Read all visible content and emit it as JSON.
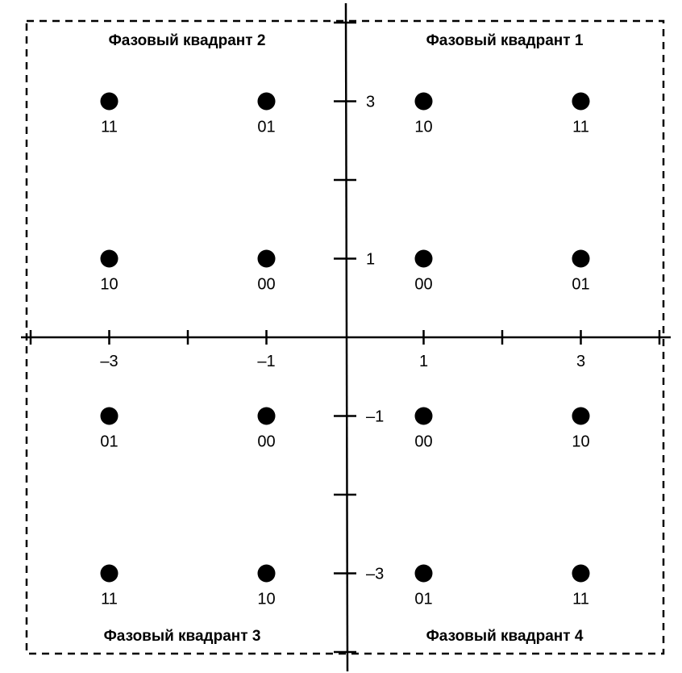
{
  "quadrants": [
    {
      "id": "q1",
      "title": "Фазовый квадрант 1"
    },
    {
      "id": "q2",
      "title": "Фазовый квадрант 2"
    },
    {
      "id": "q3",
      "title": "Фазовый квадрант 3"
    },
    {
      "id": "q4",
      "title": "Фазовый квадрант 4"
    }
  ],
  "axes": {
    "x_tick_labels": [
      {
        "value": -3,
        "text": "–3"
      },
      {
        "value": -1,
        "text": "–1"
      },
      {
        "value": 1,
        "text": "1"
      },
      {
        "value": 3,
        "text": "3"
      }
    ],
    "y_tick_labels": [
      {
        "value": 3,
        "text": "3"
      },
      {
        "value": 1,
        "text": "1"
      },
      {
        "value": -1,
        "text": "–1"
      },
      {
        "value": -3,
        "text": "–3"
      }
    ],
    "ticks": [
      -4,
      -3,
      -2,
      -1,
      1,
      2,
      3,
      4
    ]
  },
  "points": [
    {
      "x": -3,
      "y": 3,
      "label": "11"
    },
    {
      "x": -1,
      "y": 3,
      "label": "01"
    },
    {
      "x": 1,
      "y": 3,
      "label": "10"
    },
    {
      "x": 3,
      "y": 3,
      "label": "11"
    },
    {
      "x": -3,
      "y": 1,
      "label": "10"
    },
    {
      "x": -1,
      "y": 1,
      "label": "00"
    },
    {
      "x": 1,
      "y": 1,
      "label": "00"
    },
    {
      "x": 3,
      "y": 1,
      "label": "01"
    },
    {
      "x": -3,
      "y": -1,
      "label": "01"
    },
    {
      "x": -1,
      "y": -1,
      "label": "00"
    },
    {
      "x": 1,
      "y": -1,
      "label": "00"
    },
    {
      "x": 3,
      "y": -1,
      "label": "10"
    },
    {
      "x": -3,
      "y": -3,
      "label": "11"
    },
    {
      "x": -1,
      "y": -3,
      "label": "10"
    },
    {
      "x": 1,
      "y": -3,
      "label": "01"
    },
    {
      "x": 3,
      "y": -3,
      "label": "11"
    }
  ]
}
